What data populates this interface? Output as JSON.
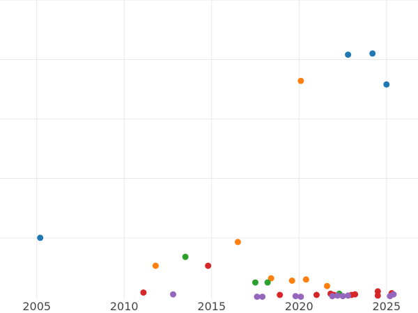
{
  "chart_data": {
    "type": "scatter",
    "title": "",
    "xlabel": "",
    "ylabel": "",
    "grid": true,
    "legend": "none",
    "xlim": [
      2002.9,
      2026.8
    ],
    "ylim": [
      -0.03,
      5.0
    ],
    "xticks": [
      2005,
      2010,
      2015,
      2020,
      2025
    ],
    "xtick_labels": [
      "2005",
      "2010",
      "2015",
      "2020",
      "2025"
    ],
    "yticks": [
      1,
      2,
      3,
      4,
      5
    ],
    "series": [
      {
        "color": "#1f77b4",
        "points": [
          {
            "x": 2005.2,
            "y": 1.0
          },
          {
            "x": 2022.8,
            "y": 4.08
          },
          {
            "x": 2024.2,
            "y": 4.1
          },
          {
            "x": 2025.0,
            "y": 3.58
          }
        ]
      },
      {
        "color": "#ff7f0e",
        "points": [
          {
            "x": 2011.8,
            "y": 0.53
          },
          {
            "x": 2016.5,
            "y": 0.93
          },
          {
            "x": 2018.4,
            "y": 0.32
          },
          {
            "x": 2019.6,
            "y": 0.28
          },
          {
            "x": 2020.1,
            "y": 3.64
          },
          {
            "x": 2020.4,
            "y": 0.3
          },
          {
            "x": 2021.6,
            "y": 0.19
          }
        ]
      },
      {
        "color": "#2ca02c",
        "points": [
          {
            "x": 2013.5,
            "y": 0.68
          },
          {
            "x": 2017.5,
            "y": 0.25
          },
          {
            "x": 2018.2,
            "y": 0.25
          },
          {
            "x": 2022.3,
            "y": 0.06
          }
        ]
      },
      {
        "color": "#d62728",
        "points": [
          {
            "x": 2011.1,
            "y": 0.08
          },
          {
            "x": 2014.8,
            "y": 0.53
          },
          {
            "x": 2018.9,
            "y": 0.04
          },
          {
            "x": 2021.0,
            "y": 0.04
          },
          {
            "x": 2021.8,
            "y": 0.06
          },
          {
            "x": 2022.0,
            "y": 0.04
          },
          {
            "x": 2023.0,
            "y": 0.04
          },
          {
            "x": 2023.2,
            "y": 0.05
          },
          {
            "x": 2024.5,
            "y": 0.1
          },
          {
            "x": 2024.5,
            "y": 0.03
          },
          {
            "x": 2025.3,
            "y": 0.07
          }
        ]
      },
      {
        "color": "#9467bd",
        "points": [
          {
            "x": 2012.8,
            "y": 0.05
          },
          {
            "x": 2017.6,
            "y": 0.01
          },
          {
            "x": 2017.9,
            "y": 0.01
          },
          {
            "x": 2019.8,
            "y": 0.02
          },
          {
            "x": 2020.1,
            "y": 0.01
          },
          {
            "x": 2021.9,
            "y": 0.02
          },
          {
            "x": 2022.2,
            "y": 0.03
          },
          {
            "x": 2022.5,
            "y": 0.02
          },
          {
            "x": 2022.8,
            "y": 0.03
          },
          {
            "x": 2025.2,
            "y": 0.02
          },
          {
            "x": 2025.4,
            "y": 0.05
          }
        ]
      }
    ]
  }
}
